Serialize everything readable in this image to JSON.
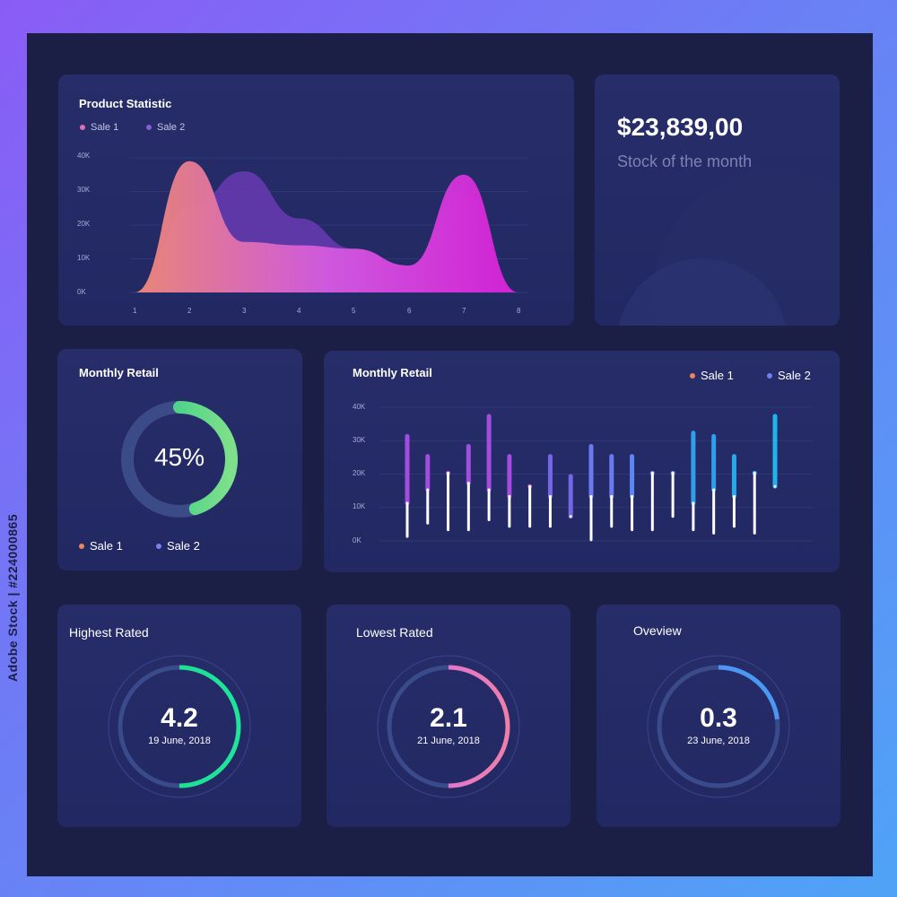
{
  "stock_id": "Adobe Stock | #224000865",
  "product_statistic": {
    "title": "Product Statistic",
    "legend": [
      {
        "label": "Sale 1",
        "color": "#e06fb1"
      },
      {
        "label": "Sale 2",
        "color": "#8b5bd6"
      }
    ],
    "y_ticks": [
      "40K",
      "30K",
      "20K",
      "10K",
      "0K"
    ],
    "x_ticks": [
      "1",
      "2",
      "3",
      "4",
      "5",
      "6",
      "7",
      "8"
    ]
  },
  "stock_card": {
    "amount": "$23,839,00",
    "label": "Stock of the month"
  },
  "monthly_retail_donut": {
    "title": "Monthly Retail",
    "percent_label": "45%",
    "percent": 45,
    "legend": [
      {
        "label": "Sale 1",
        "color": "#e8875b"
      },
      {
        "label": "Sale 2",
        "color": "#7b7ef0"
      }
    ]
  },
  "monthly_retail_bars": {
    "title": "Monthly Retail",
    "legend": [
      {
        "label": "Sale 1",
        "color": "#e8875b"
      },
      {
        "label": "Sale 2",
        "color": "#6d7ff5"
      }
    ],
    "y_ticks": [
      "40K",
      "30K",
      "20K",
      "10K",
      "0K"
    ]
  },
  "highest_rated": {
    "title": "Highest Rated",
    "value": "4.2",
    "date": "19 June, 2018",
    "progress": 0.5
  },
  "lowest_rated": {
    "title": "Lowest Rated",
    "value": "2.1",
    "date": "21 June, 2018",
    "progress": 0.5
  },
  "overview": {
    "title": "Oveview",
    "value": "0.3",
    "date": "23 June, 2018",
    "progress": 0.23
  },
  "chart_data": [
    {
      "type": "area",
      "title": "Product Statistic",
      "x": [
        1,
        2,
        3,
        4,
        5,
        6,
        7,
        8
      ],
      "ylim": [
        0,
        40000
      ],
      "grid": true,
      "legend_position": "top-left",
      "series": [
        {
          "name": "Sale 1",
          "values": [
            0,
            39000,
            15000,
            14000,
            13000,
            8000,
            35000,
            0
          ]
        },
        {
          "name": "Sale 2",
          "values": [
            0,
            25000,
            36000,
            22000,
            13000,
            8000,
            30000,
            0
          ]
        }
      ]
    },
    {
      "type": "bar",
      "title": "Monthly Retail",
      "ylim": [
        0,
        40000
      ],
      "grid": true,
      "legend_position": "top-right",
      "bars": [
        {
          "high": 34000,
          "split": 14000,
          "low": 4000,
          "color": "#a24ce0"
        },
        {
          "high": 28000,
          "split": 18000,
          "low": 8000,
          "color": "#a24ce0"
        },
        {
          "high": 23000,
          "split": 23000,
          "low": 6000,
          "color": "#a24ce0"
        },
        {
          "high": 31000,
          "split": 20000,
          "low": 6000,
          "color": "#a24ce0"
        },
        {
          "high": 40000,
          "split": 18000,
          "low": 9000,
          "color": "#a24ce0"
        },
        {
          "high": 28000,
          "split": 16000,
          "low": 7000,
          "color": "#a24ce0"
        },
        {
          "high": 19000,
          "split": 19000,
          "low": 7000,
          "color": "#a24ce0"
        },
        {
          "high": 28000,
          "split": 16000,
          "low": 7000,
          "color": "#7566e8"
        },
        {
          "high": 22000,
          "split": 10000,
          "low": 10000,
          "color": "#7566e8"
        },
        {
          "high": 31000,
          "split": 16000,
          "low": 3000,
          "color": "#6a7bf0"
        },
        {
          "high": 28000,
          "split": 16000,
          "low": 7000,
          "color": "#6a7bf0"
        },
        {
          "high": 28000,
          "split": 16000,
          "low": 6000,
          "color": "#5b87f3"
        },
        {
          "high": 23000,
          "split": 23000,
          "low": 6000,
          "color": "#5b87f3"
        },
        {
          "high": 23000,
          "split": 23000,
          "low": 10000,
          "color": "#5b87f3"
        },
        {
          "high": 35000,
          "split": 14000,
          "low": 6000,
          "color": "#2e9fe8"
        },
        {
          "high": 34000,
          "split": 18000,
          "low": 5000,
          "color": "#2e9fe8"
        },
        {
          "high": 28000,
          "split": 16000,
          "low": 7000,
          "color": "#2aa9ea"
        },
        {
          "high": 23000,
          "split": 23000,
          "low": 5000,
          "color": "#2aa9ea"
        },
        {
          "high": 40000,
          "split": 19000,
          "low": 19000,
          "color": "#20b4ee"
        }
      ]
    }
  ]
}
